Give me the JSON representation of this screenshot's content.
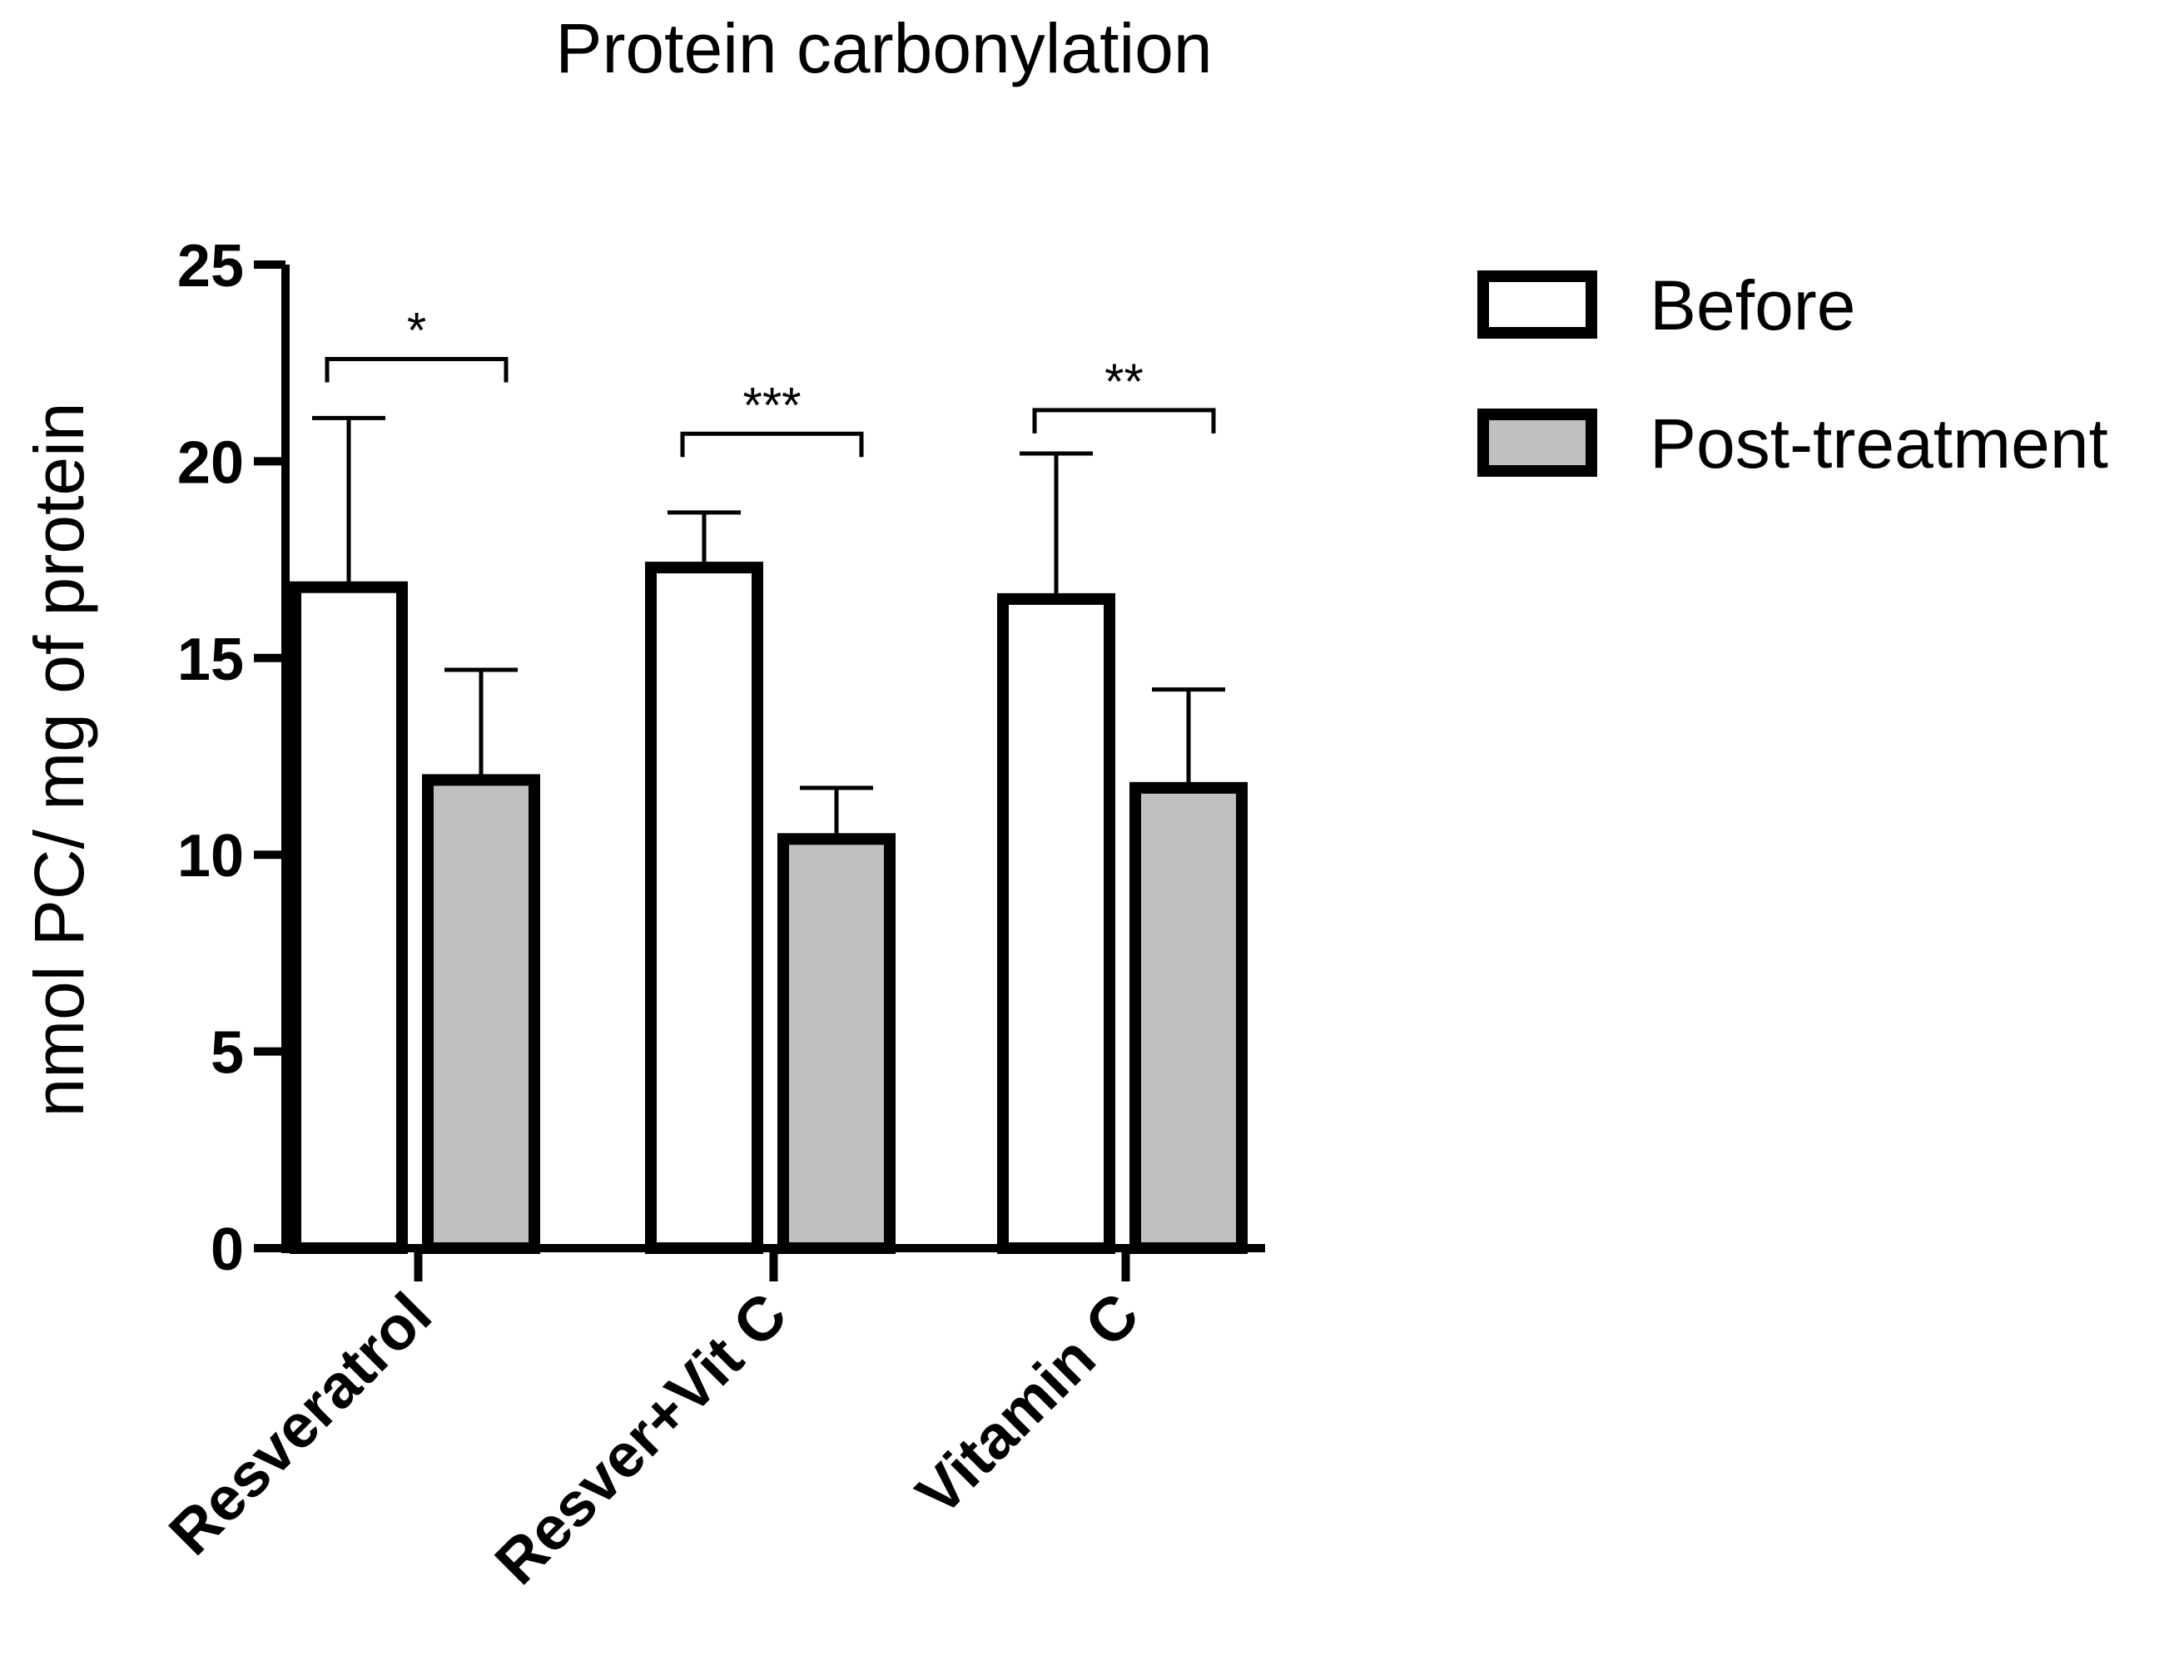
{
  "chart_data": {
    "type": "bar",
    "title": "Protein carbonylation",
    "xlabel": "",
    "ylabel": "nmol PC/ mg of protein",
    "ylim": [
      0,
      25
    ],
    "yticks": [
      0,
      5,
      10,
      15,
      20,
      25
    ],
    "ytick_labels": [
      "0",
      "5",
      "10",
      "15",
      "20",
      "25"
    ],
    "categories": [
      "Resveratrol",
      "Resver+Vit C",
      "Vitamin C"
    ],
    "series": [
      {
        "name": "Before",
        "color": "#ffffff",
        "values": [
          16.8,
          17.3,
          16.5
        ],
        "errors": [
          4.3,
          1.4,
          3.7
        ]
      },
      {
        "name": "Post-treatment",
        "color": "#c0c0c0",
        "values": [
          11.9,
          10.4,
          11.7
        ],
        "errors": [
          2.8,
          1.3,
          2.5
        ]
      }
    ],
    "significance": [
      {
        "category": "Resveratrol",
        "label": "*",
        "value": 22.6
      },
      {
        "category": "Resver+Vit C",
        "label": "***",
        "value": 20.7
      },
      {
        "category": "Vitamin C",
        "label": "**",
        "value": 21.3
      }
    ],
    "legend": {
      "position": "top-right",
      "entries": [
        "Before",
        "Post-treatment"
      ]
    },
    "grid": false
  }
}
